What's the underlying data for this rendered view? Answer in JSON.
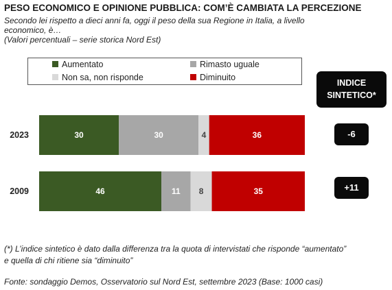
{
  "header": {
    "title": "PESO ECONOMICO E OPINIONE PUBBLICA: COM’È CAMBIATA LA PERCEZIONE",
    "subtitle_line1": "Secondo lei rispetto a dieci anni fa, oggi il peso della sua Regione in Italia, a livello",
    "subtitle_line2": "economico, è…",
    "subtitle_line3": "(Valori percentuali – serie storica Nord Est)"
  },
  "index": {
    "header_line1": "INDICE",
    "header_line2": "SINTETICO*",
    "values": [
      "-6",
      "+11"
    ]
  },
  "footer": {
    "note_line1": "(*) L’indice sintetico è dato dalla differenza tra la quota di intervistati che risponde “aumentato”",
    "note_line2": "e quella di chi ritiene sia “diminuito”",
    "source": "Fonte: sondaggio Demos, Osservatorio sul Nord Est, settembre 2023 (Base: 1000 casi)"
  },
  "chart_data": {
    "type": "bar",
    "orientation": "horizontal",
    "stacked": true,
    "percent_scale": true,
    "categories": [
      "2023",
      "2009"
    ],
    "series": [
      {
        "name": "Aumentato",
        "values": [
          30,
          46
        ],
        "color": "#3b5a24"
      },
      {
        "name": "Rimasto uguale",
        "values": [
          30,
          11
        ],
        "color": "#a7a7a7"
      },
      {
        "name": "Non sa, non risponde",
        "values": [
          4,
          8
        ],
        "color": "#d9d9d9"
      },
      {
        "name": "Diminuito",
        "values": [
          36,
          35
        ],
        "color": "#c00000"
      }
    ],
    "legend_position": "top",
    "grid": false
  }
}
